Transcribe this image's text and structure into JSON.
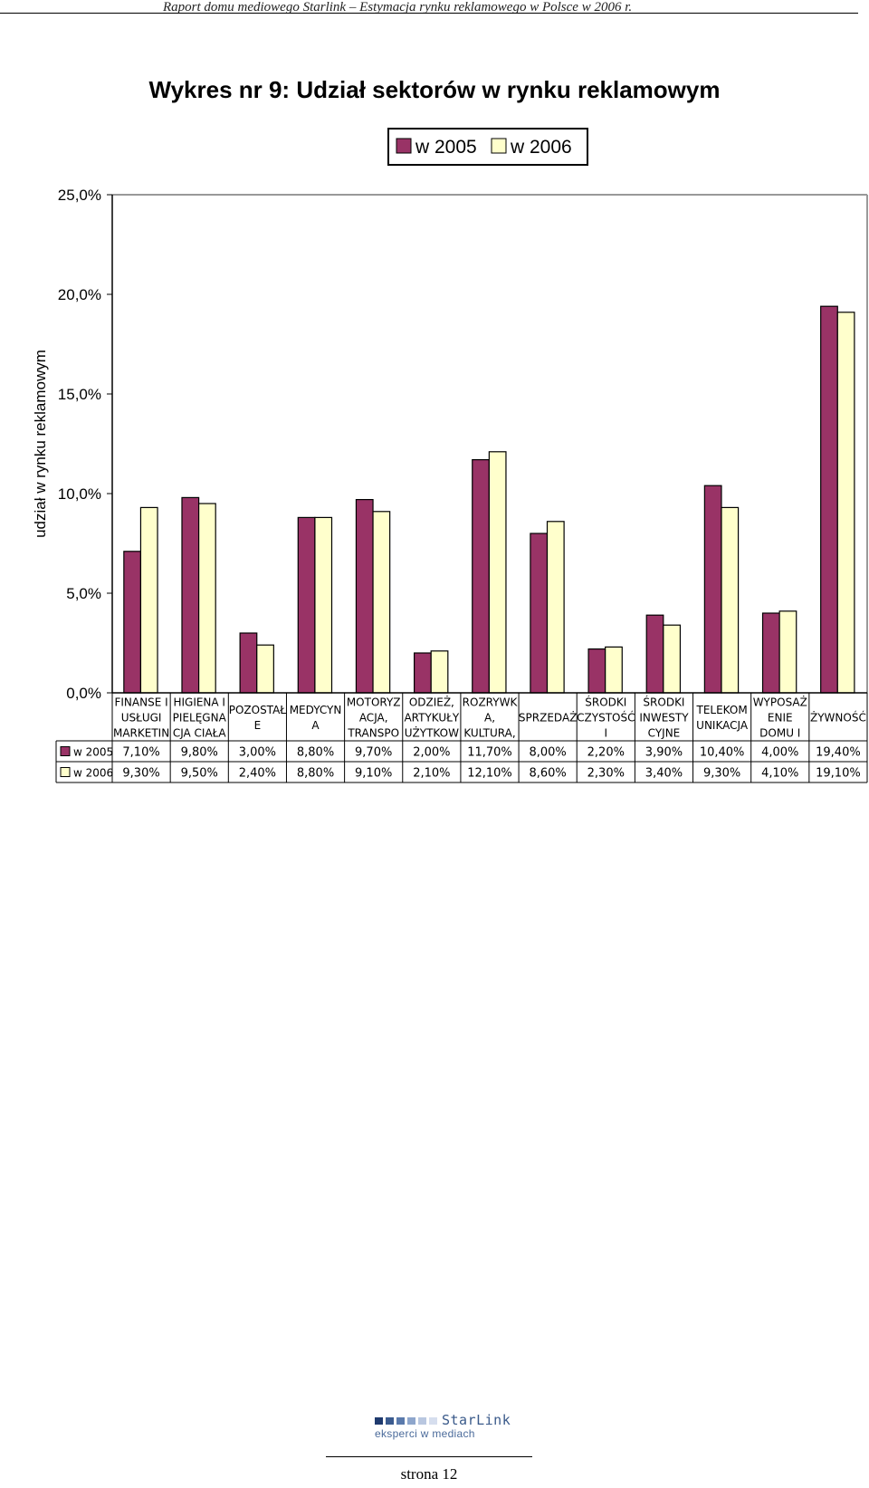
{
  "header": {
    "text": "Raport domu mediowego Starlink – Estymacja rynku reklamowego w Polsce w 2006 r."
  },
  "chart_title": "Wykres nr 9: Udział sektorów w rynku reklamowym",
  "footer": {
    "logo_name": "StarLink",
    "logo_tagline": "eksperci w mediach",
    "page_number": "strona 12"
  },
  "colors": {
    "series_2005": "#993366",
    "series_2006": "#ffffcc"
  },
  "chart_data": {
    "type": "bar",
    "title": "Wykres nr 9: Udział sektorów w rynku reklamowym",
    "xlabel": "",
    "ylabel": "udział w rynku reklamowym",
    "ylim": [
      0,
      25
    ],
    "yticks": [
      "0,0%",
      "5,0%",
      "10,0%",
      "15,0%",
      "20,0%",
      "25,0%"
    ],
    "grid": false,
    "legend_position": "top-right",
    "categories": [
      [
        "FINANSE I",
        "USŁUGI",
        "MARKETIN"
      ],
      [
        "HIGIENA I",
        "PIELĘGNA",
        "CJA CIAŁA"
      ],
      [
        "POZOSTAŁ",
        "E"
      ],
      [
        "MEDYCYN",
        "A"
      ],
      [
        "MOTORYZ",
        "ACJA,",
        "TRANSPO"
      ],
      [
        "ODZIEŻ,",
        "ARTYKUŁY",
        "UŻYTKOW"
      ],
      [
        "ROZRYWK",
        "A,",
        "KULTURA,"
      ],
      [
        "SPRZEDAŻ"
      ],
      [
        "ŚRODKI",
        "CZYSTOŚĆ",
        "I"
      ],
      [
        "ŚRODKI",
        "INWESTY",
        "CYJNE"
      ],
      [
        "TELEKOM",
        "UNIKACJA"
      ],
      [
        "WYPOSAŻ",
        "ENIE",
        "DOMU I"
      ],
      [
        "ŻYWNOŚĆ"
      ]
    ],
    "series": [
      {
        "name": "w 2005",
        "values": [
          7.1,
          9.8,
          3.0,
          8.8,
          9.7,
          2.0,
          11.7,
          8.0,
          2.2,
          3.9,
          10.4,
          4.0,
          19.4
        ],
        "labels": [
          "7,10%",
          "9,80%",
          "3,00%",
          "8,80%",
          "9,70%",
          "2,00%",
          "11,70%",
          "8,00%",
          "2,20%",
          "3,90%",
          "10,40%",
          "4,00%",
          "19,40%"
        ]
      },
      {
        "name": "w 2006",
        "values": [
          9.3,
          9.5,
          2.4,
          8.8,
          9.1,
          2.1,
          12.1,
          8.6,
          2.3,
          3.4,
          9.3,
          4.1,
          19.1
        ],
        "labels": [
          "9,30%",
          "9,50%",
          "2,40%",
          "8,80%",
          "9,10%",
          "2,10%",
          "12,10%",
          "8,60%",
          "2,30%",
          "3,40%",
          "9,30%",
          "4,10%",
          "19,10%"
        ]
      }
    ]
  }
}
